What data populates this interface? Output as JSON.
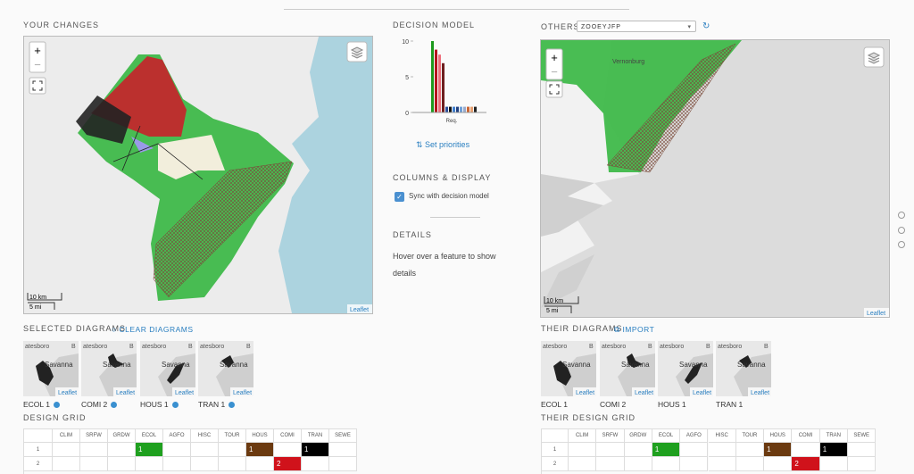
{
  "your_changes": {
    "title": "YOUR CHANGES"
  },
  "map_ui": {
    "zoom_in": "+",
    "zoom_out": "−",
    "scale_km": "10 km",
    "scale_mi": "5 mi",
    "attribution": "Leaflet"
  },
  "decision_model": {
    "title": "DECISION MODEL",
    "chart": {
      "type": "bar",
      "category": "Req.",
      "values": [
        10,
        8.8,
        8.1,
        6.9,
        0.8,
        0.8,
        0.8,
        0.8,
        0.8,
        0.8,
        0.8,
        0.8,
        0.8
      ],
      "colors": [
        "#1d9a1d",
        "#b3161c",
        "#ee6f7c",
        "#6e1f1f",
        "#2a4d9a",
        "#111111",
        "#3f7fd0",
        "#1f3f80",
        "#6fa0d8",
        "#99aacc",
        "#cc6633",
        "#e8a070",
        "#222222"
      ],
      "ylim": [
        0,
        10
      ],
      "yticks": [
        0,
        5,
        10
      ]
    },
    "set_priorities": "Set priorities"
  },
  "columns_display": {
    "title": "COLUMNS & DISPLAY",
    "sync": "Sync with decision model"
  },
  "details": {
    "title": "DETAILS",
    "text": "Hover over a feature to show details"
  },
  "others": {
    "label": "OTHERS:",
    "selected": "ZOOEYJFP",
    "map_label": "Vernonburg"
  },
  "selected_diagrams": {
    "title": "SELECTED DIAGRAMS",
    "action": "CLEAR DIAGRAMS",
    "items": [
      "ECOL 1",
      "COMI 2",
      "HOUS 1",
      "TRAN 1"
    ]
  },
  "their_diagrams": {
    "title": "THEIR DIAGRAMS",
    "action": "IMPORT",
    "items": [
      "ECOL 1",
      "COMI 2",
      "HOUS 1",
      "TRAN 1"
    ]
  },
  "thumbnail": {
    "places": [
      "atesboro",
      "B",
      "Savanna"
    ],
    "attribution": "Leaflet"
  },
  "design_grid": {
    "title": "DESIGN GRID",
    "columns": [
      "CLIM",
      "SRFW",
      "GRDW",
      "ECOL",
      "AGFO",
      "HISC",
      "TOUR",
      "HOUS",
      "COMI",
      "TRAN",
      "SEWE"
    ],
    "rows": [
      {
        "label": "1",
        "cells": [
          null,
          null,
          null,
          {
            "text": "1",
            "color": "#1fa01f"
          },
          null,
          null,
          null,
          {
            "text": "1",
            "color": "#6b3a10"
          },
          null,
          {
            "text": "1",
            "color": "#000000"
          },
          null
        ]
      },
      {
        "label": "2",
        "cells": [
          null,
          null,
          null,
          null,
          null,
          null,
          null,
          null,
          {
            "text": "2",
            "color": "#d0121b"
          },
          null,
          null
        ]
      }
    ]
  },
  "their_design_grid": {
    "title": "THEIR DESIGN GRID",
    "columns": [
      "CLIM",
      "SRFW",
      "GRDW",
      "ECOL",
      "AGFO",
      "HISC",
      "TOUR",
      "HOUS",
      "COMI",
      "TRAN",
      "SEWE"
    ],
    "rows": [
      {
        "label": "1",
        "cells": [
          null,
          null,
          null,
          {
            "text": "1",
            "color": "#1fa01f"
          },
          null,
          null,
          null,
          {
            "text": "1",
            "color": "#6b3a10"
          },
          null,
          {
            "text": "1",
            "color": "#000000"
          },
          null
        ]
      },
      {
        "label": "2",
        "cells": [
          null,
          null,
          null,
          null,
          null,
          null,
          null,
          null,
          {
            "text": "2",
            "color": "#d0121b"
          },
          null,
          null
        ]
      }
    ]
  }
}
